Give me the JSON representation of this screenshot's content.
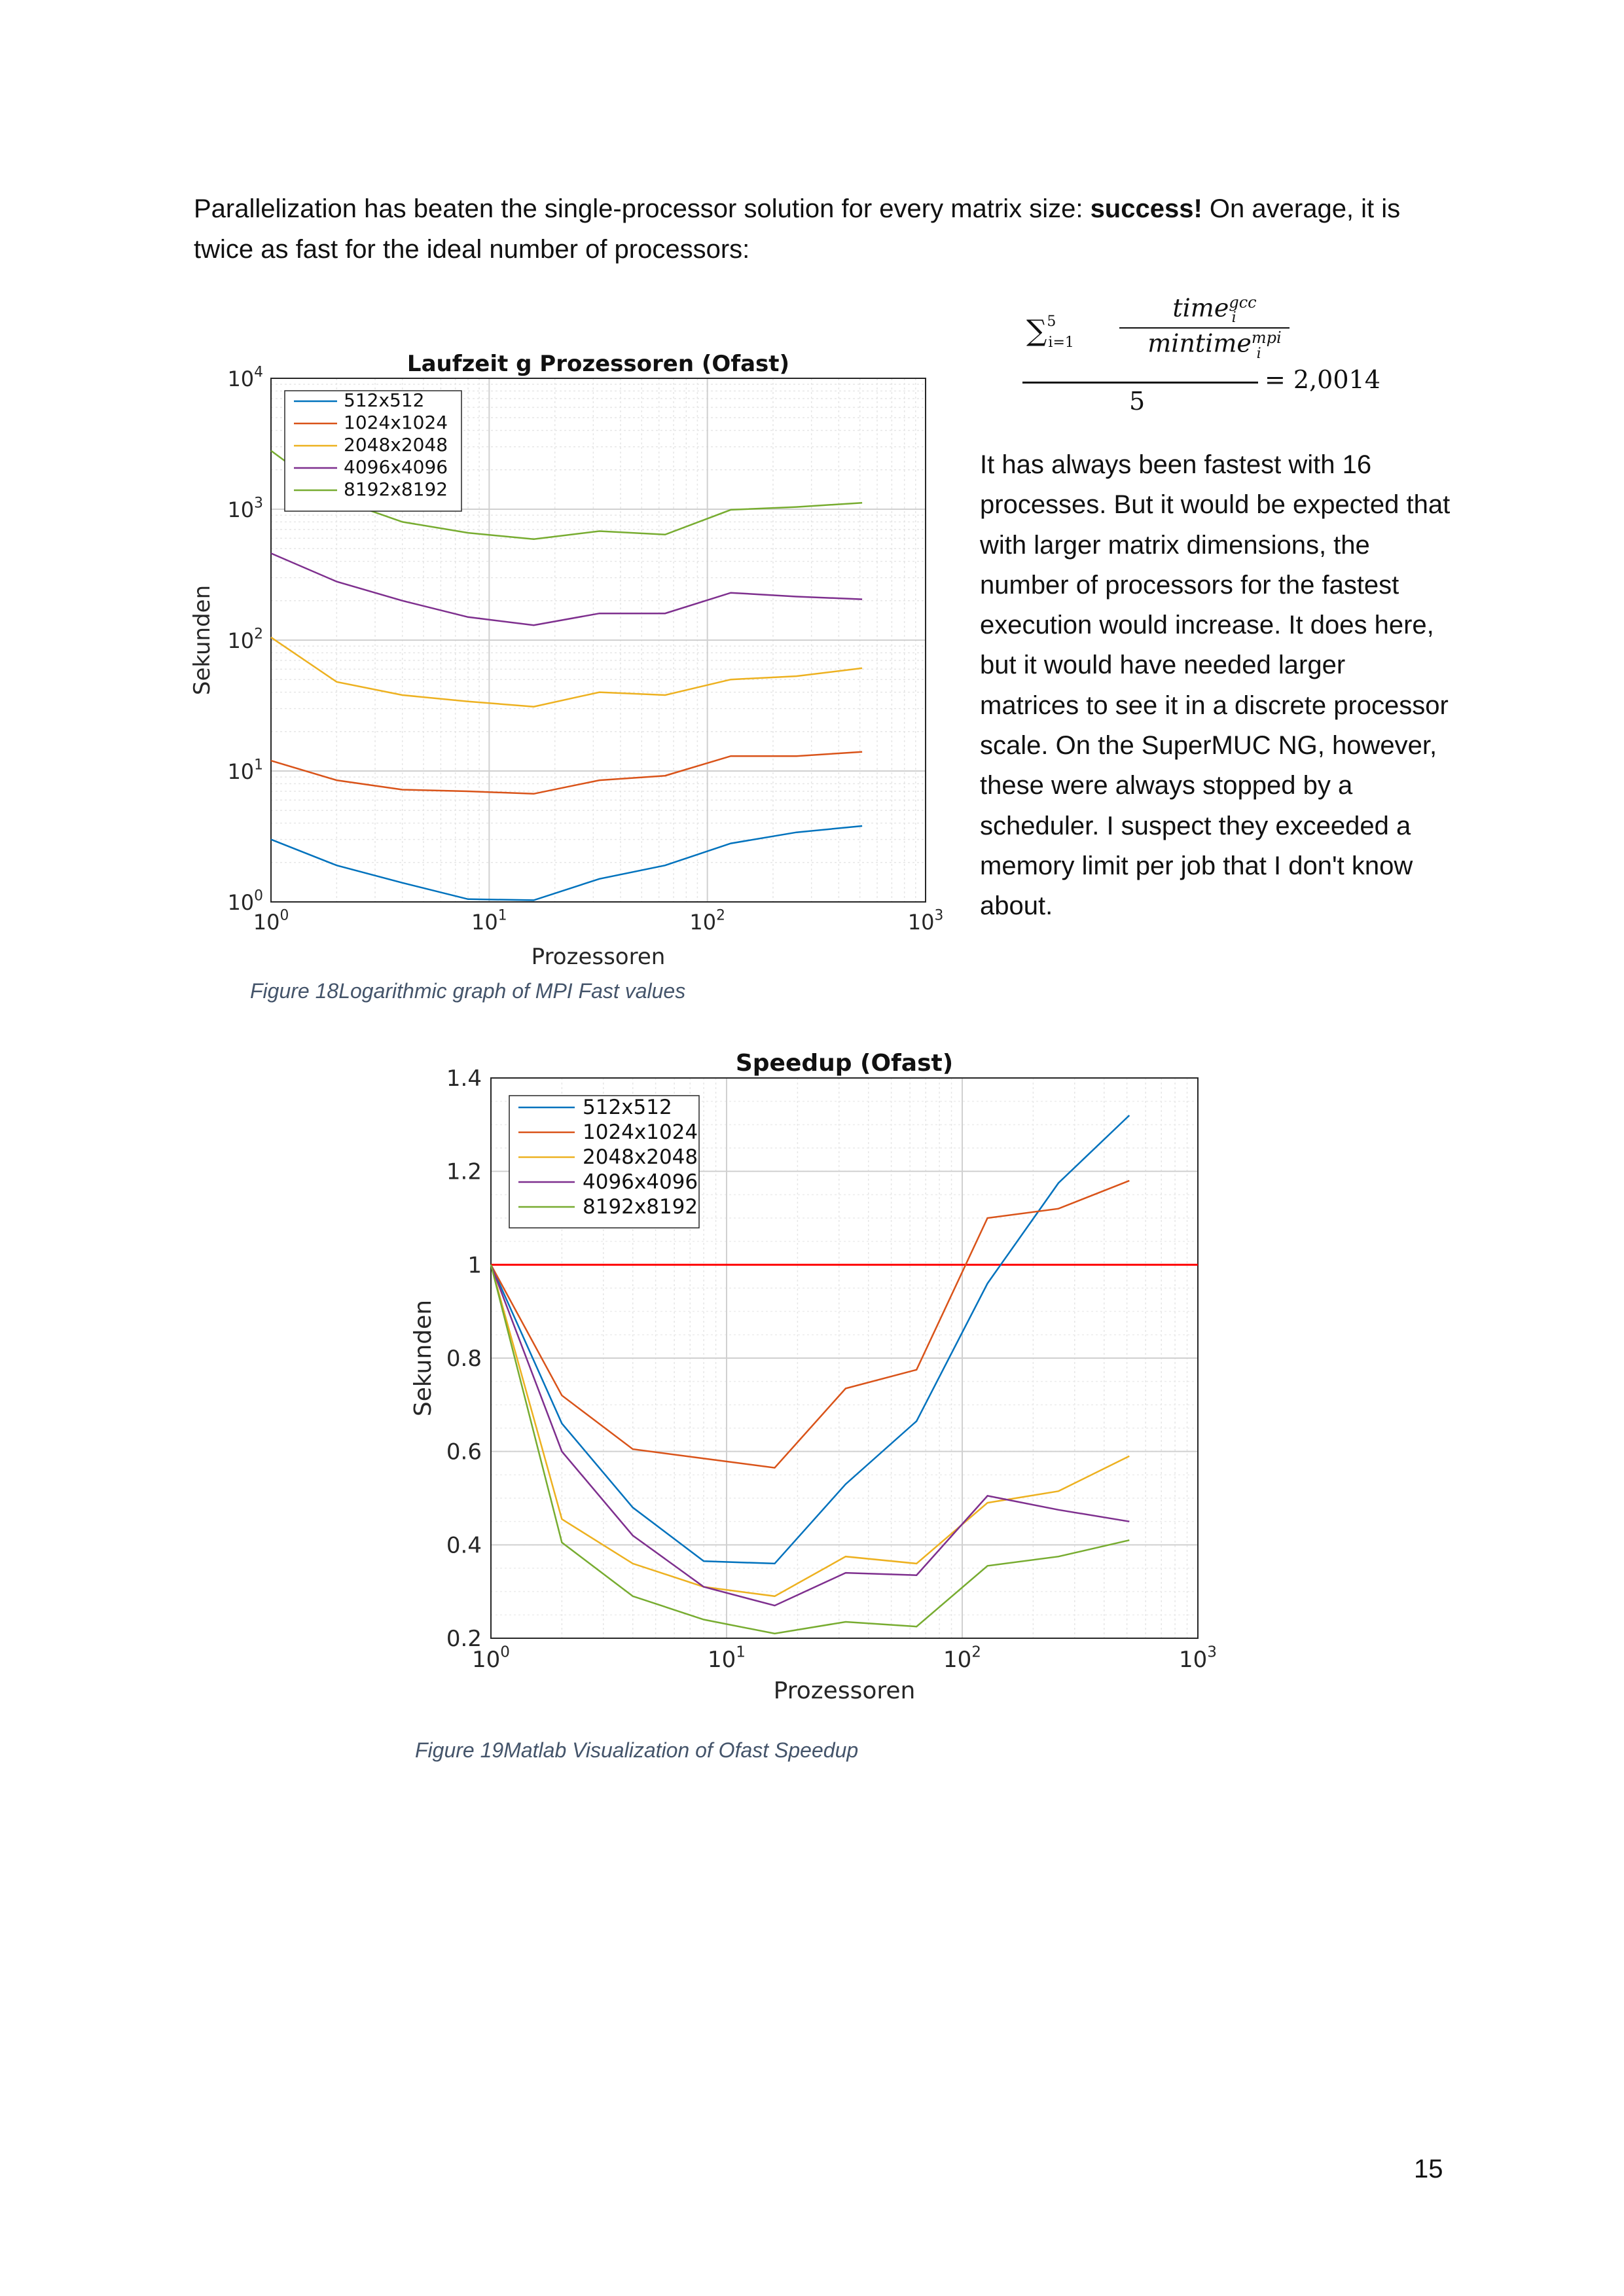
{
  "intro": {
    "part1": "Parallelization has beaten the single-processor solution for every matrix size: ",
    "bold": "success!",
    "part2": " On average, it is twice as fast for the ideal number of processors:"
  },
  "formula": {
    "sum": "∑",
    "sum_upper": "5",
    "sum_lower": "i=1",
    "numerator": "time",
    "numerator_sup": "gcc",
    "numerator_sub": "i",
    "denominator": "mintime",
    "denominator_sup": "mpi",
    "denominator_sub": "i",
    "divisor": "5",
    "result": "= 2,0014"
  },
  "side_text": "It has always been fastest with 16 processes. But it would be expected that with larger matrix dimensions, the number of processors for the fastest execution would increase. It does here, but it would have needed larger matrices to see it in a discrete processor scale. On the SuperMUC NG, however, these were always stopped by a scheduler. I suspect they exceeded a memory limit per job that I don't know about.",
  "captions": {
    "fig18": "Figure 18Logarithmic graph of MPI Fast values",
    "fig19": "Figure 19Matlab Visualization of Ofast Speedup"
  },
  "page_number": "15",
  "colors": {
    "s512": "#0072bd",
    "s1024": "#d95319",
    "s2048": "#edb120",
    "s4096": "#7e2f8e",
    "s8192": "#77ac30",
    "reference": "#ff0000",
    "caption": "#44546a"
  },
  "chart_data": [
    {
      "type": "line",
      "title": "Laufzeit g Prozessoren (Ofast)",
      "xlabel": "Prozessoren",
      "ylabel": "Sekunden",
      "xscale": "log",
      "yscale": "log",
      "xlim": [
        1,
        1000
      ],
      "ylim": [
        1,
        10000
      ],
      "xticks": [
        1,
        10,
        100,
        1000
      ],
      "yticks": [
        1,
        10,
        100,
        1000,
        10000
      ],
      "xtick_exponents": [
        "0",
        "1",
        "2",
        "3"
      ],
      "ytick_exponents": [
        "0",
        "1",
        "2",
        "3",
        "4"
      ],
      "grid": true,
      "legend_position": "top-left",
      "x": [
        1,
        2,
        4,
        8,
        16,
        32,
        64,
        128,
        256,
        512
      ],
      "series": [
        {
          "name": "512x512",
          "color": "#0072bd",
          "values": [
            3.0,
            1.9,
            1.4,
            1.05,
            1.03,
            1.5,
            1.9,
            2.8,
            3.4,
            3.8
          ]
        },
        {
          "name": "1024x1024",
          "color": "#d95319",
          "values": [
            12,
            8.5,
            7.2,
            7.0,
            6.7,
            8.5,
            9.2,
            13,
            13,
            14
          ]
        },
        {
          "name": "2048x2048",
          "color": "#edb120",
          "values": [
            105,
            48,
            38,
            34,
            31,
            40,
            38,
            50,
            53,
            61
          ]
        },
        {
          "name": "4096x4096",
          "color": "#7e2f8e",
          "values": [
            460,
            280,
            200,
            150,
            130,
            160,
            160,
            230,
            215,
            205
          ]
        },
        {
          "name": "8192x8192",
          "color": "#77ac30",
          "values": [
            2800,
            1200,
            800,
            660,
            590,
            680,
            640,
            990,
            1040,
            1120
          ]
        }
      ]
    },
    {
      "type": "line",
      "title": "Speedup (Ofast)",
      "xlabel": "Prozessoren",
      "ylabel": "Sekunden",
      "xscale": "log",
      "xlim": [
        1,
        1000
      ],
      "ylim": [
        0.2,
        1.4
      ],
      "xticks": [
        1,
        10,
        100,
        1000
      ],
      "xtick_exponents": [
        "0",
        "1",
        "2",
        "3"
      ],
      "yticks": [
        0.2,
        0.4,
        0.6,
        0.8,
        1,
        1.2,
        1.4
      ],
      "ytick_labels": [
        "0.2",
        "0.4",
        "0.6",
        "0.8",
        "1",
        "1.2",
        "1.4"
      ],
      "grid": true,
      "legend_position": "top-left",
      "reference_line": 1,
      "x": [
        1,
        2,
        4,
        8,
        16,
        32,
        64,
        128,
        256,
        512
      ],
      "series": [
        {
          "name": "512x512",
          "color": "#0072bd",
          "values": [
            1.0,
            0.66,
            0.48,
            0.365,
            0.36,
            0.53,
            0.665,
            0.96,
            1.175,
            1.32
          ]
        },
        {
          "name": "1024x1024",
          "color": "#d95319",
          "values": [
            1.0,
            0.72,
            0.605,
            0.585,
            0.565,
            0.735,
            0.775,
            1.1,
            1.12,
            1.18
          ]
        },
        {
          "name": "2048x2048",
          "color": "#edb120",
          "values": [
            1.0,
            0.455,
            0.36,
            0.31,
            0.29,
            0.375,
            0.36,
            0.49,
            0.515,
            0.59
          ]
        },
        {
          "name": "4096x4096",
          "color": "#7e2f8e",
          "values": [
            1.0,
            0.6,
            0.42,
            0.31,
            0.27,
            0.34,
            0.335,
            0.505,
            0.475,
            0.45
          ]
        },
        {
          "name": "8192x8192",
          "color": "#77ac30",
          "values": [
            1.0,
            0.405,
            0.29,
            0.24,
            0.21,
            0.235,
            0.225,
            0.355,
            0.375,
            0.41
          ]
        }
      ]
    }
  ]
}
